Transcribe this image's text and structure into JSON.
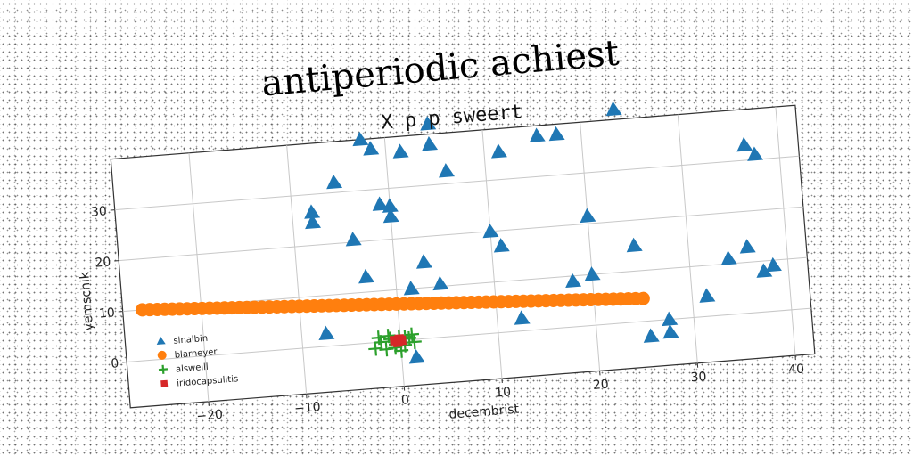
{
  "figure": {
    "suptitle": "antiperiodic achiest"
  },
  "chart_data": {
    "type": "scatter",
    "title": "X p p sweert",
    "xlabel": "decembrist",
    "ylabel": "yemschik",
    "xlim": [
      -28,
      42
    ],
    "ylim": [
      -9,
      40
    ],
    "xticks": [
      -20,
      -10,
      0,
      10,
      20,
      30,
      40
    ],
    "yticks": [
      0,
      10,
      20,
      30
    ],
    "grid": true,
    "legend_position": "bottom-left",
    "series": [
      {
        "name": "sinalbin",
        "marker": "triangle",
        "color": "#1f77b4",
        "points": [
          [
            -2.5,
            40
          ],
          [
            -1.5,
            38
          ],
          [
            4.5,
            42
          ],
          [
            4.5,
            38
          ],
          [
            1.5,
            37
          ],
          [
            6,
            32.5
          ],
          [
            -5.5,
            32
          ],
          [
            11.5,
            35.5
          ],
          [
            15.5,
            38
          ],
          [
            17.5,
            38
          ],
          [
            23.5,
            42
          ],
          [
            -8,
            26.5
          ],
          [
            -8,
            24.5
          ],
          [
            -1,
            27
          ],
          [
            0,
            26.5
          ],
          [
            0,
            24.5
          ],
          [
            36.5,
            33
          ],
          [
            37.5,
            31
          ],
          [
            -4,
            20.5
          ],
          [
            10,
            20
          ],
          [
            20,
            21.5
          ],
          [
            11,
            17
          ],
          [
            3,
            15
          ],
          [
            24.5,
            15
          ],
          [
            -3,
            13
          ],
          [
            4.5,
            10.5
          ],
          [
            1.5,
            10
          ],
          [
            20,
            10
          ],
          [
            18,
            9
          ],
          [
            34,
            11
          ],
          [
            36,
            13
          ],
          [
            37.5,
            8
          ],
          [
            38.5,
            9
          ],
          [
            31.5,
            4
          ],
          [
            12.5,
            2.5
          ],
          [
            -7.5,
            2.5
          ],
          [
            27.5,
            0
          ],
          [
            27.5,
            -2.5
          ],
          [
            25.5,
            -3
          ],
          [
            1.5,
            -3.5
          ]
        ]
      },
      {
        "name": "blarneyer",
        "marker": "circle",
        "color": "#ff7f0e",
        "line": {
          "x_from": -26,
          "x_to": 25,
          "y_from": 10,
          "y_to": 4.5,
          "count": 68
        }
      },
      {
        "name": "alsweill",
        "marker": "plus",
        "color": "#2ca02c",
        "points": [
          [
            -2.6,
            -1.2
          ],
          [
            -2,
            0
          ],
          [
            -1.5,
            -1.5
          ],
          [
            -1,
            0.5
          ],
          [
            -0.5,
            -0.6
          ],
          [
            -0.1,
            0.8
          ],
          [
            0.4,
            -1
          ],
          [
            0.9,
            0.3
          ],
          [
            1.4,
            -0.5
          ],
          [
            -2.2,
            0.9
          ],
          [
            0,
            -2
          ],
          [
            1.2,
            1
          ],
          [
            -1.2,
            1.1
          ],
          [
            0.5,
            0.6
          ],
          [
            -0.6,
            -1.3
          ]
        ]
      },
      {
        "name": "iridocapsulitis",
        "marker": "square",
        "color": "#d62728",
        "points": [
          [
            -0.6,
            0.1
          ],
          [
            -0.1,
            0.3
          ],
          [
            -0.3,
            -0.3
          ],
          [
            0.1,
            0
          ]
        ]
      }
    ]
  }
}
